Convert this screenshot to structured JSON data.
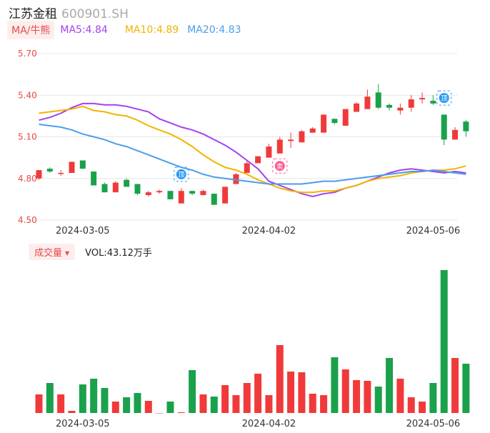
{
  "header": {
    "name": "江苏金租",
    "code": "600901.SH"
  },
  "ma_legend": {
    "tag": "MA/牛熊",
    "ma5": "MA5:4.84",
    "ma10": "MA10:4.89",
    "ma20": "MA20:4.83"
  },
  "volume_legend": {
    "tag": "成交量",
    "value": "VOL:43.12万手"
  },
  "colors": {
    "up": "#f03a3a",
    "down": "#1aa14b",
    "ma5": "#a341f0",
    "ma10": "#f2b400",
    "ma20": "#4a9eea",
    "grid": "#e6e6e6"
  },
  "chart_data": [
    {
      "type": "candlestick",
      "y_ticks": [
        "5.70",
        "5.40",
        "5.10",
        "4.80",
        "4.50"
      ],
      "ylim": [
        4.5,
        5.7
      ],
      "x_ticks": [
        "2024-03-05",
        "2024-04-02",
        "2024-05-06"
      ],
      "grid": true,
      "candles": [
        {
          "o": 4.8,
          "h": 4.86,
          "l": 4.79,
          "c": 4.86
        },
        {
          "o": 4.87,
          "h": 4.88,
          "l": 4.84,
          "c": 4.85
        },
        {
          "o": 4.84,
          "h": 4.86,
          "l": 4.82,
          "c": 4.84
        },
        {
          "o": 4.84,
          "h": 4.92,
          "l": 4.84,
          "c": 4.92
        },
        {
          "o": 4.93,
          "h": 4.93,
          "l": 4.87,
          "c": 4.87
        },
        {
          "o": 4.85,
          "h": 4.85,
          "l": 4.75,
          "c": 4.75
        },
        {
          "o": 4.76,
          "h": 4.77,
          "l": 4.7,
          "c": 4.7
        },
        {
          "o": 4.7,
          "h": 4.78,
          "l": 4.7,
          "c": 4.77
        },
        {
          "o": 4.79,
          "h": 4.8,
          "l": 4.74,
          "c": 4.74
        },
        {
          "o": 4.76,
          "h": 4.76,
          "l": 4.68,
          "c": 4.69
        },
        {
          "o": 4.68,
          "h": 4.71,
          "l": 4.67,
          "c": 4.7
        },
        {
          "o": 4.7,
          "h": 4.72,
          "l": 4.69,
          "c": 4.71
        },
        {
          "o": 4.71,
          "h": 4.71,
          "l": 4.65,
          "c": 4.65
        },
        {
          "o": 4.62,
          "h": 4.73,
          "l": 4.62,
          "c": 4.71
        },
        {
          "o": 4.71,
          "h": 4.71,
          "l": 4.68,
          "c": 4.69
        },
        {
          "o": 4.68,
          "h": 4.72,
          "l": 4.68,
          "c": 4.71
        },
        {
          "o": 4.69,
          "h": 4.69,
          "l": 4.61,
          "c": 4.61
        },
        {
          "o": 4.62,
          "h": 4.74,
          "l": 4.62,
          "c": 4.74
        },
        {
          "o": 4.76,
          "h": 4.84,
          "l": 4.76,
          "c": 4.83
        },
        {
          "o": 4.84,
          "h": 4.93,
          "l": 4.84,
          "c": 4.91
        },
        {
          "o": 4.91,
          "h": 4.96,
          "l": 4.91,
          "c": 4.96
        },
        {
          "o": 4.95,
          "h": 5.05,
          "l": 4.95,
          "c": 5.03
        },
        {
          "o": 4.98,
          "h": 5.1,
          "l": 4.98,
          "c": 5.08
        },
        {
          "o": 5.07,
          "h": 5.13,
          "l": 5.02,
          "c": 5.08
        },
        {
          "o": 5.06,
          "h": 5.15,
          "l": 5.06,
          "c": 5.14
        },
        {
          "o": 5.13,
          "h": 5.17,
          "l": 5.13,
          "c": 5.16
        },
        {
          "o": 5.13,
          "h": 5.26,
          "l": 5.13,
          "c": 5.26
        },
        {
          "o": 5.23,
          "h": 5.23,
          "l": 5.19,
          "c": 5.2
        },
        {
          "o": 5.18,
          "h": 5.3,
          "l": 5.18,
          "c": 5.3
        },
        {
          "o": 5.28,
          "h": 5.35,
          "l": 5.28,
          "c": 5.34
        },
        {
          "o": 5.3,
          "h": 5.44,
          "l": 5.3,
          "c": 5.39
        },
        {
          "o": 5.42,
          "h": 5.48,
          "l": 5.3,
          "c": 5.31
        },
        {
          "o": 5.33,
          "h": 5.34,
          "l": 5.29,
          "c": 5.31
        },
        {
          "o": 5.29,
          "h": 5.34,
          "l": 5.26,
          "c": 5.31
        },
        {
          "o": 5.31,
          "h": 5.4,
          "l": 5.28,
          "c": 5.37
        },
        {
          "o": 5.37,
          "h": 5.42,
          "l": 5.34,
          "c": 5.38
        },
        {
          "o": 5.36,
          "h": 5.4,
          "l": 5.33,
          "c": 5.34
        },
        {
          "o": 5.26,
          "h": 5.26,
          "l": 5.04,
          "c": 5.08
        },
        {
          "o": 5.08,
          "h": 5.17,
          "l": 5.08,
          "c": 5.15
        },
        {
          "o": 5.21,
          "h": 5.22,
          "l": 5.1,
          "c": 5.14
        }
      ],
      "series": [
        {
          "name": "MA5",
          "values": [
            5.22,
            5.24,
            5.27,
            5.31,
            5.34,
            5.34,
            5.33,
            5.33,
            5.32,
            5.3,
            5.28,
            5.23,
            5.2,
            5.17,
            5.15,
            5.12,
            5.08,
            5.04,
            4.99,
            4.93,
            4.87,
            4.78,
            4.75,
            4.72,
            4.69,
            4.67,
            4.69,
            4.7,
            4.73,
            4.75,
            4.78,
            4.81,
            4.84,
            4.86,
            4.87,
            4.86,
            4.85,
            4.84,
            4.85,
            4.84
          ]
        },
        {
          "name": "MA10",
          "values": [
            5.27,
            5.28,
            5.29,
            5.3,
            5.32,
            5.29,
            5.28,
            5.26,
            5.25,
            5.22,
            5.18,
            5.15,
            5.12,
            5.08,
            5.03,
            4.97,
            4.92,
            4.88,
            4.86,
            4.83,
            4.79,
            4.76,
            4.73,
            4.71,
            4.7,
            4.7,
            4.71,
            4.71,
            4.73,
            4.75,
            4.78,
            4.8,
            4.81,
            4.82,
            4.84,
            4.85,
            4.86,
            4.86,
            4.87,
            4.89
          ]
        },
        {
          "name": "MA20",
          "values": [
            5.19,
            5.18,
            5.17,
            5.15,
            5.12,
            5.1,
            5.08,
            5.05,
            5.03,
            5.0,
            4.97,
            4.94,
            4.91,
            4.88,
            4.86,
            4.83,
            4.81,
            4.8,
            4.79,
            4.78,
            4.77,
            4.76,
            4.76,
            4.76,
            4.76,
            4.77,
            4.78,
            4.78,
            4.79,
            4.8,
            4.81,
            4.82,
            4.83,
            4.84,
            4.85,
            4.85,
            4.86,
            4.85,
            4.84,
            4.83
          ]
        }
      ],
      "markers": [
        {
          "index": 13,
          "label": "顶",
          "price": 4.83
        },
        {
          "index": 22,
          "label": "卖",
          "price": 4.89
        },
        {
          "index": 37,
          "label": "顶",
          "price": 5.38
        }
      ]
    },
    {
      "type": "bar",
      "title": "成交量",
      "x_ticks": [
        "2024-03-05",
        "2024-04-02",
        "2024-05-06"
      ],
      "values": [
        26,
        42,
        26,
        3,
        40,
        48,
        35,
        16,
        22,
        28,
        17,
        0,
        16,
        1,
        60,
        26,
        23,
        39,
        25,
        42,
        55,
        25,
        95,
        58,
        57,
        27,
        25,
        78,
        61,
        46,
        45,
        37,
        77,
        48,
        22,
        16,
        42,
        200,
        77,
        69
      ]
    }
  ]
}
